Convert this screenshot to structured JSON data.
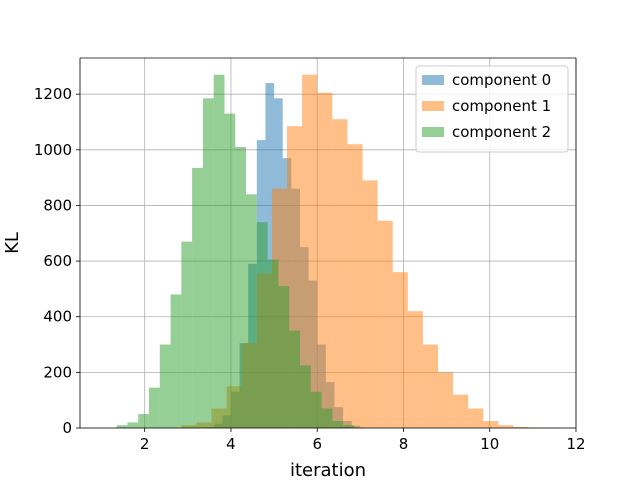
{
  "chart_data": {
    "type": "histogram",
    "title": "",
    "xlabel": "iteration",
    "ylabel": "KL",
    "xlim": [
      0.5,
      12.0
    ],
    "ylim": [
      0,
      1330
    ],
    "x_ticks": [
      2,
      4,
      6,
      8,
      10,
      12
    ],
    "y_ticks": [
      0,
      200,
      400,
      600,
      800,
      1000,
      1200
    ],
    "grid": true,
    "legend_position": "top-right",
    "bar_alpha": 0.5,
    "series": [
      {
        "name": "component 0",
        "color": "#1f77b4",
        "bins": [
          [
            3.05,
            3.4,
            0
          ],
          [
            3.4,
            3.6,
            3
          ],
          [
            3.6,
            3.8,
            15
          ],
          [
            3.8,
            4.0,
            45
          ],
          [
            4.0,
            4.2,
            130
          ],
          [
            4.2,
            4.4,
            305
          ],
          [
            4.4,
            4.6,
            590
          ],
          [
            4.6,
            4.8,
            1035
          ],
          [
            4.8,
            5.0,
            1240
          ],
          [
            5.0,
            5.2,
            1185
          ],
          [
            5.2,
            5.4,
            970
          ],
          [
            5.4,
            5.6,
            860
          ],
          [
            5.6,
            5.8,
            650
          ],
          [
            5.8,
            6.0,
            530
          ],
          [
            6.0,
            6.2,
            300
          ],
          [
            6.2,
            6.4,
            165
          ],
          [
            6.4,
            6.6,
            75
          ],
          [
            6.6,
            6.8,
            25
          ],
          [
            6.8,
            7.0,
            8
          ]
        ]
      },
      {
        "name": "component 1",
        "color": "#ff7f0e",
        "bins": [
          [
            2.85,
            3.2,
            10
          ],
          [
            3.2,
            3.55,
            20
          ],
          [
            3.55,
            3.9,
            70
          ],
          [
            3.9,
            4.25,
            150
          ],
          [
            4.25,
            4.6,
            305
          ],
          [
            4.6,
            4.95,
            555
          ],
          [
            4.95,
            5.3,
            860
          ],
          [
            5.3,
            5.65,
            1085
          ],
          [
            5.65,
            6.0,
            1270
          ],
          [
            6.0,
            6.35,
            1205
          ],
          [
            6.35,
            6.7,
            1110
          ],
          [
            6.7,
            7.05,
            1020
          ],
          [
            7.05,
            7.4,
            890
          ],
          [
            7.4,
            7.75,
            745
          ],
          [
            7.75,
            8.1,
            560
          ],
          [
            8.1,
            8.45,
            420
          ],
          [
            8.45,
            8.8,
            300
          ],
          [
            8.8,
            9.15,
            200
          ],
          [
            9.15,
            9.5,
            120
          ],
          [
            9.5,
            9.85,
            70
          ],
          [
            9.85,
            10.2,
            25
          ],
          [
            10.2,
            10.55,
            10
          ],
          [
            10.55,
            10.9,
            4
          ],
          [
            10.9,
            11.25,
            2
          ],
          [
            11.25,
            11.6,
            1
          ]
        ]
      },
      {
        "name": "component 2",
        "color": "#2ca02c",
        "bins": [
          [
            1.35,
            1.6,
            10
          ],
          [
            1.6,
            1.85,
            20
          ],
          [
            1.85,
            2.1,
            50
          ],
          [
            2.1,
            2.35,
            145
          ],
          [
            2.35,
            2.6,
            300
          ],
          [
            2.6,
            2.85,
            480
          ],
          [
            2.85,
            3.1,
            670
          ],
          [
            3.1,
            3.35,
            935
          ],
          [
            3.35,
            3.6,
            1185
          ],
          [
            3.6,
            3.85,
            1270
          ],
          [
            3.85,
            4.1,
            1130
          ],
          [
            4.1,
            4.35,
            1010
          ],
          [
            4.35,
            4.6,
            840
          ],
          [
            4.6,
            4.85,
            740
          ],
          [
            4.85,
            5.1,
            605
          ],
          [
            5.1,
            5.35,
            510
          ],
          [
            5.35,
            5.6,
            350
          ],
          [
            5.6,
            5.85,
            225
          ],
          [
            5.85,
            6.1,
            130
          ],
          [
            6.1,
            6.35,
            70
          ],
          [
            6.35,
            6.6,
            25
          ],
          [
            6.6,
            6.85,
            10
          ]
        ]
      }
    ]
  }
}
